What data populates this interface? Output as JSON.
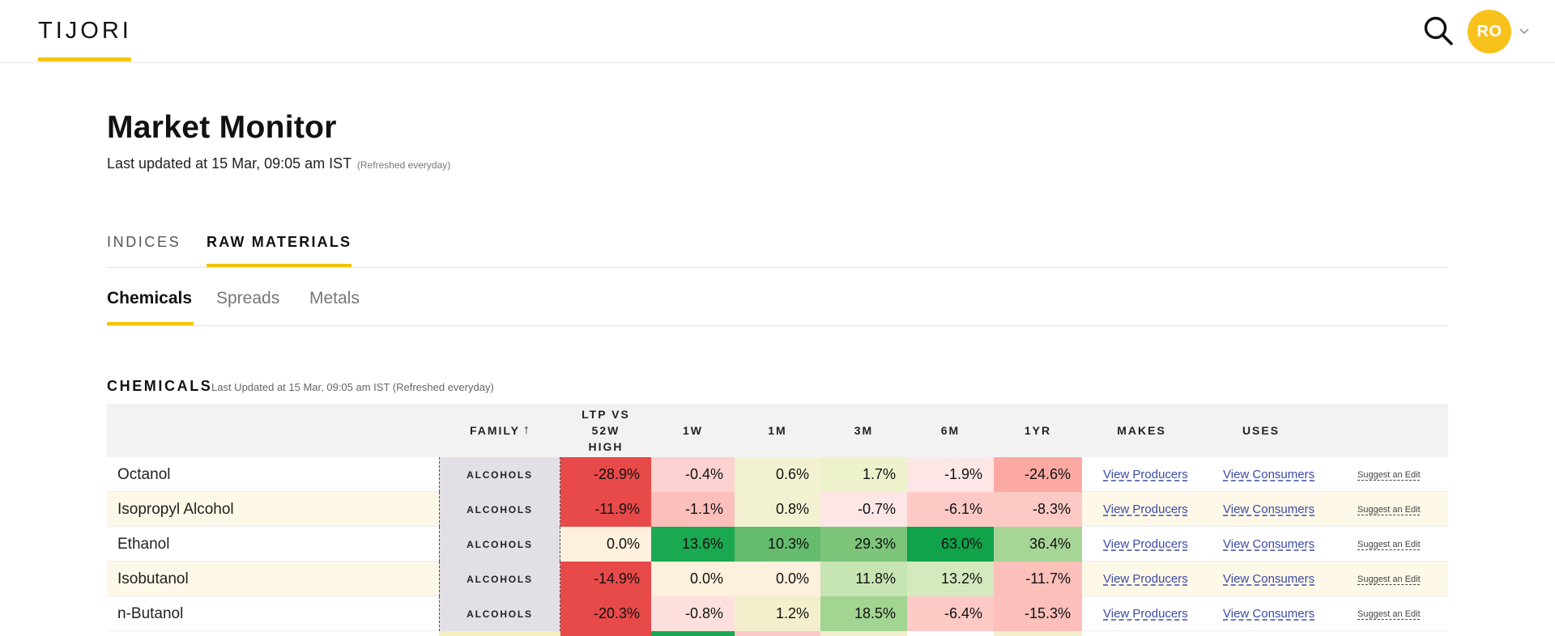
{
  "header": {
    "logo": "TIJORI",
    "avatar_initials": "RO",
    "brand_color": "#f5c400",
    "avatar_color": "#f8c11c",
    "icons": [
      "search-icon",
      "chevron-down-icon"
    ]
  },
  "page": {
    "title": "Market Monitor",
    "updated": "Last updated at 15 Mar, 09:05 am IST",
    "refreshed": "(Refreshed everyday)"
  },
  "main_tabs": [
    {
      "label": "INDICES",
      "active": false
    },
    {
      "label": "RAW MATERIALS",
      "active": true
    }
  ],
  "sub_tabs": [
    {
      "label": "Chemicals",
      "active": true
    },
    {
      "label": "Spreads",
      "active": false
    },
    {
      "label": "Metals",
      "active": false
    }
  ],
  "section": {
    "title": "CHEMICALS",
    "updated": "Last Updated at 15 Mar, 09:05 am IST (Refreshed everyday)"
  },
  "table": {
    "headers": {
      "family": "FAMILY",
      "family_sort": "↑",
      "ltp_line1": "LTP VS",
      "ltp_line2": "52W",
      "ltp_line3": "HIGH",
      "w1": "1W",
      "m1": "1M",
      "m3": "3M",
      "m6": "6M",
      "yr1": "1YR",
      "makes": "MAKES",
      "uses": "USES"
    },
    "link_producers": "View Producers",
    "link_consumers": "View Consumers",
    "link_suggest": "Suggest an Edit",
    "rows": [
      {
        "name": "Octanol",
        "family": "ALCOHOLS",
        "ltp": "-28.9%",
        "w1": "-0.4%",
        "m1": "0.6%",
        "m3": "1.7%",
        "m6": "-1.9%",
        "yr1": "-24.6%",
        "makes": "View Producers",
        "uses": "View Consumers",
        "suggest": "Suggest an Edit"
      },
      {
        "name": "Isopropyl Alcohol",
        "family": "ALCOHOLS",
        "ltp": "-11.9%",
        "w1": "-1.1%",
        "m1": "0.8%",
        "m3": "-0.7%",
        "m6": "-6.1%",
        "yr1": "-8.3%",
        "makes": "View Producers",
        "uses": "View Consumers",
        "suggest": "Suggest an Edit"
      },
      {
        "name": "Ethanol",
        "family": "ALCOHOLS",
        "ltp": "0.0%",
        "w1": "13.6%",
        "m1": "10.3%",
        "m3": "29.3%",
        "m6": "63.0%",
        "yr1": "36.4%",
        "makes": "View Producers",
        "uses": "View Consumers",
        "suggest": "Suggest an Edit"
      },
      {
        "name": "Isobutanol",
        "family": "ALCOHOLS",
        "ltp": "-14.9%",
        "w1": "0.0%",
        "m1": "0.0%",
        "m3": "11.8%",
        "m6": "13.2%",
        "yr1": "-11.7%",
        "makes": "View Producers",
        "uses": "View Consumers",
        "suggest": "Suggest an Edit"
      },
      {
        "name": "n-Butanol",
        "family": "ALCOHOLS",
        "ltp": "-20.3%",
        "w1": "-0.8%",
        "m1": "1.2%",
        "m3": "18.5%",
        "m6": "-6.4%",
        "yr1": "-15.3%",
        "makes": "View Producers",
        "uses": "View Consumers",
        "suggest": "Suggest an Edit"
      }
    ],
    "cell_colors": [
      {
        "ltp": "#e84a4a",
        "w1": "#fdd2d0",
        "m1": "#f2f2d2",
        "m3": "#eef2cc",
        "m6": "#fde6e6",
        "yr1": "#fba9a2"
      },
      {
        "ltp": "#e84a4a",
        "w1": "#fcbfbb",
        "m1": "#f2f2d2",
        "m3": "#fde6e6",
        "m6": "#fcc9c5",
        "yr1": "#fcc9c5"
      },
      {
        "ltp": "#fdf0dc",
        "w1": "#1aa850",
        "m1": "#65bb6e",
        "m3": "#7cc57b",
        "m6": "#10a34a",
        "yr1": "#a6d596"
      },
      {
        "ltp": "#e84a4a",
        "w1": "#fdf0dc",
        "m1": "#fdf0dc",
        "m3": "#c7e4b3",
        "m6": "#d4e9be",
        "yr1": "#fcc0bb"
      },
      {
        "ltp": "#e84a4a",
        "w1": "#fde0dd",
        "m1": "#f3efcc",
        "m3": "#a2d492",
        "m6": "#fcc9c5",
        "yr1": "#fcbfbb"
      }
    ]
  }
}
